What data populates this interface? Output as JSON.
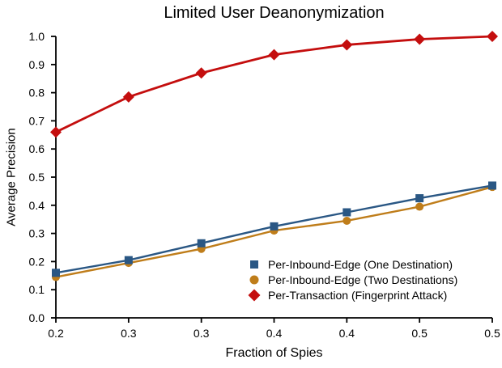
{
  "colors": {
    "background": "#ffffff",
    "axis": "#000000",
    "text": "#000000",
    "series_blue": "#2A5784",
    "series_orange": "#BF7D1A",
    "series_red": "#C40E0E"
  },
  "chart_data": {
    "type": "line",
    "title": "Limited User Deanonymization",
    "xlabel": "Fraction of Spies",
    "ylabel": "Average Precision",
    "xlim": [
      0.2,
      0.5
    ],
    "ylim": [
      0.0,
      1.0
    ],
    "grid": false,
    "legend_position": "lower-right-inside",
    "x": [
      0.2,
      0.25,
      0.3,
      0.35,
      0.4,
      0.45,
      0.5
    ],
    "x_tick_labels": [
      "0.2",
      "0.3",
      "0.3",
      "0.4",
      "0.4",
      "0.5",
      "0.5"
    ],
    "y_ticks": [
      0.0,
      0.1,
      0.2,
      0.3,
      0.4,
      0.5,
      0.6,
      0.7,
      0.8,
      0.9,
      1.0
    ],
    "y_tick_labels": [
      "0.0",
      "0.1",
      "0.2",
      "0.3",
      "0.4",
      "0.5",
      "0.6",
      "0.7",
      "0.8",
      "0.9",
      "1.0"
    ],
    "series": [
      {
        "name": "Per-Inbound-Edge (One Destination)",
        "marker": "square",
        "color": "#2A5784",
        "values": [
          0.16,
          0.205,
          0.265,
          0.325,
          0.375,
          0.425,
          0.47
        ]
      },
      {
        "name": "Per-Inbound-Edge (Two Destinations)",
        "marker": "circle",
        "color": "#BF7D1A",
        "values": [
          0.145,
          0.195,
          0.245,
          0.31,
          0.345,
          0.395,
          0.465
        ]
      },
      {
        "name": "Per-Transaction (Fingerprint Attack)",
        "marker": "diamond",
        "color": "#C40E0E",
        "values": [
          0.66,
          0.785,
          0.87,
          0.935,
          0.97,
          0.99,
          1.0
        ]
      }
    ]
  }
}
